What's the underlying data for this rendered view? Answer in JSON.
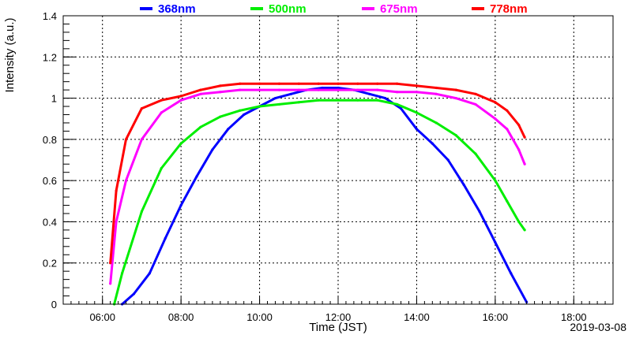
{
  "chart_data": {
    "type": "line",
    "xlabel": "Time (JST)",
    "ylabel": "Intensity (a.u.)",
    "date_label": "2019-03-08",
    "x_unit": "hour of day (JST)",
    "xlim": [
      5.0,
      19.0
    ],
    "ylim": [
      0,
      1.4
    ],
    "x_ticks": [
      {
        "value": 6,
        "label": "06:00"
      },
      {
        "value": 8,
        "label": "08:00"
      },
      {
        "value": 10,
        "label": "10:00"
      },
      {
        "value": 12,
        "label": "12:00"
      },
      {
        "value": 14,
        "label": "14:00"
      },
      {
        "value": 16,
        "label": "16:00"
      },
      {
        "value": 18,
        "label": "18:00"
      }
    ],
    "y_ticks": [
      {
        "value": 0,
        "label": "0"
      },
      {
        "value": 0.2,
        "label": "0.2"
      },
      {
        "value": 0.4,
        "label": "0.4"
      },
      {
        "value": 0.6,
        "label": "0.6"
      },
      {
        "value": 0.8,
        "label": "0.8"
      },
      {
        "value": 1,
        "label": "1"
      },
      {
        "value": 1.2,
        "label": "1.2"
      },
      {
        "value": 1.4,
        "label": "1.4"
      }
    ],
    "grid": true,
    "grid_style": "dotted",
    "legend_position": "top",
    "series": [
      {
        "name": "368nm",
        "color": "#0000ff",
        "x": [
          6.5,
          6.8,
          7.2,
          7.6,
          8.0,
          8.4,
          8.8,
          9.2,
          9.6,
          10.0,
          10.4,
          10.8,
          11.2,
          11.6,
          12.0,
          12.4,
          12.8,
          13.2,
          13.6,
          14.0,
          14.4,
          14.8,
          15.2,
          15.6,
          16.0,
          16.4,
          16.8
        ],
        "y": [
          0.0,
          0.05,
          0.15,
          0.32,
          0.48,
          0.62,
          0.75,
          0.85,
          0.92,
          0.96,
          1.0,
          1.02,
          1.04,
          1.05,
          1.05,
          1.04,
          1.02,
          1.0,
          0.95,
          0.85,
          0.78,
          0.7,
          0.58,
          0.45,
          0.3,
          0.15,
          0.01
        ]
      },
      {
        "name": "500nm",
        "color": "#00ee00",
        "x": [
          6.3,
          6.5,
          7.0,
          7.5,
          8.0,
          8.5,
          9.0,
          9.5,
          10.0,
          10.5,
          11.0,
          11.5,
          12.0,
          12.5,
          13.0,
          13.5,
          14.0,
          14.5,
          15.0,
          15.5,
          16.0,
          16.3,
          16.6,
          16.75
        ],
        "y": [
          0.0,
          0.15,
          0.45,
          0.66,
          0.78,
          0.86,
          0.91,
          0.94,
          0.96,
          0.97,
          0.98,
          0.99,
          0.99,
          0.99,
          0.99,
          0.97,
          0.93,
          0.88,
          0.82,
          0.73,
          0.6,
          0.5,
          0.4,
          0.36
        ]
      },
      {
        "name": "675nm",
        "color": "#ff00ff",
        "x": [
          6.2,
          6.35,
          6.6,
          7.0,
          7.5,
          8.0,
          8.5,
          9.0,
          9.5,
          10.0,
          10.5,
          11.0,
          11.5,
          12.0,
          12.5,
          13.0,
          13.5,
          14.0,
          14.5,
          15.0,
          15.5,
          16.0,
          16.3,
          16.6,
          16.75
        ],
        "y": [
          0.1,
          0.4,
          0.6,
          0.8,
          0.93,
          0.99,
          1.02,
          1.03,
          1.04,
          1.04,
          1.04,
          1.04,
          1.04,
          1.04,
          1.04,
          1.04,
          1.03,
          1.03,
          1.02,
          1.0,
          0.97,
          0.9,
          0.85,
          0.75,
          0.68
        ]
      },
      {
        "name": "778nm",
        "color": "#ff0000",
        "x": [
          6.2,
          6.35,
          6.6,
          7.0,
          7.5,
          8.0,
          8.5,
          9.0,
          9.5,
          10.0,
          10.5,
          11.0,
          11.5,
          12.0,
          12.5,
          13.0,
          13.5,
          14.0,
          14.5,
          15.0,
          15.5,
          16.0,
          16.3,
          16.6,
          16.75
        ],
        "y": [
          0.2,
          0.55,
          0.8,
          0.95,
          0.99,
          1.01,
          1.04,
          1.06,
          1.07,
          1.07,
          1.07,
          1.07,
          1.07,
          1.07,
          1.07,
          1.07,
          1.07,
          1.06,
          1.05,
          1.04,
          1.02,
          0.98,
          0.94,
          0.87,
          0.81
        ]
      }
    ]
  }
}
